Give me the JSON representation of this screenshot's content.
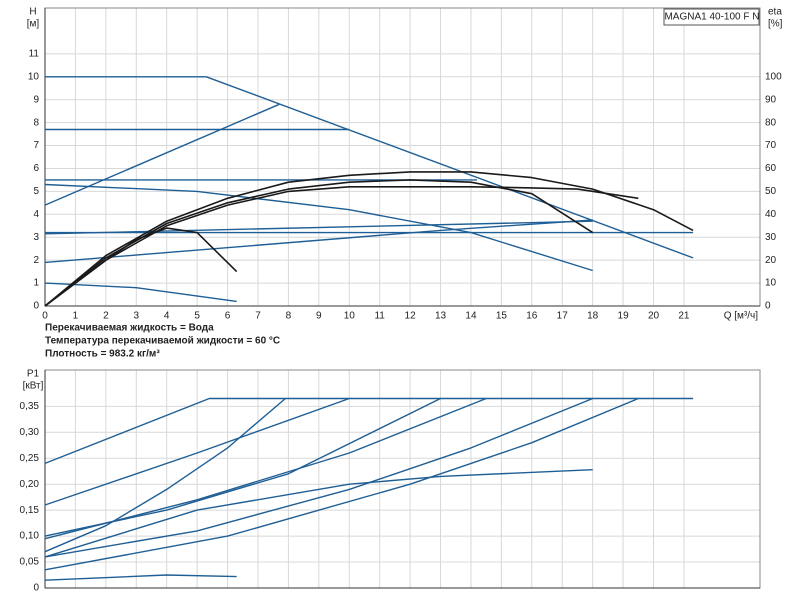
{
  "chart_data": [
    {
      "type": "line",
      "title": "MAGNA1 40-100 F N",
      "ylabel": "H",
      "yunit": "[м]",
      "y2label": "eta",
      "y2unit": "[%]",
      "xlabel": "Q [м³/ч]",
      "annotations": [
        "Перекачиваемая жидкость = Вода",
        "Температура перекачиваемой жидкости = 60 °C",
        "Плотность = 983.2 кг/м³"
      ],
      "xlim": [
        0,
        23.5
      ],
      "xticks": [
        0,
        1,
        2,
        3,
        4,
        5,
        6,
        7,
        8,
        9,
        10,
        11,
        12,
        13,
        14,
        15,
        16,
        17,
        18,
        19,
        20,
        21
      ],
      "ylim": [
        0,
        13
      ],
      "yticks": [
        0,
        1,
        2,
        3,
        4,
        5,
        6,
        7,
        8,
        9,
        10,
        11
      ],
      "y2lim": [
        0,
        130
      ],
      "y2ticks": [
        0,
        10,
        20,
        30,
        40,
        50,
        60,
        70,
        80,
        90,
        100
      ],
      "grid": true,
      "series": [
        {
          "color": "#1f5f95",
          "x": [
            0,
            5.3,
            21.3
          ],
          "values": [
            10,
            10,
            2.1
          ]
        },
        {
          "color": "#1f5f95",
          "x": [
            0,
            10
          ],
          "values": [
            7.7,
            7.7
          ]
        },
        {
          "color": "#1f5f95",
          "x": [
            0,
            14.2
          ],
          "values": [
            5.5,
            5.5
          ]
        },
        {
          "color": "#1f5f95",
          "x": [
            0,
            5,
            10,
            14,
            18
          ],
          "values": [
            5.3,
            5.0,
            4.2,
            3.2,
            1.55
          ]
        },
        {
          "color": "#1f5f95",
          "x": [
            0,
            21.3
          ],
          "values": [
            3.2,
            3.2
          ]
        },
        {
          "color": "#1f5f95",
          "x": [
            0,
            7.7
          ],
          "values": [
            4.4,
            8.8
          ]
        },
        {
          "color": "#1f5f95",
          "x": [
            0,
            18
          ],
          "values": [
            3.15,
            3.7
          ]
        },
        {
          "color": "#1f5f95",
          "x": [
            0,
            13,
            18
          ],
          "values": [
            1.9,
            3.3,
            3.75
          ]
        },
        {
          "color": "#1f5f95",
          "x": [
            0,
            3,
            6.3
          ],
          "values": [
            1.0,
            0.8,
            0.2
          ]
        },
        {
          "color": "#1a1a1a",
          "axis": "y2",
          "x": [
            0,
            2,
            4,
            6,
            8,
            10,
            12,
            14,
            16,
            18,
            20,
            21.3
          ],
          "values": [
            0,
            22,
            37,
            47,
            54,
            57,
            58.5,
            58.5,
            56,
            51,
            42,
            33
          ]
        },
        {
          "color": "#1a1a1a",
          "axis": "y2",
          "x": [
            0,
            2,
            4,
            6,
            8,
            10,
            12,
            14,
            16,
            17.5,
            19.5
          ],
          "values": [
            0,
            20,
            35,
            44,
            50,
            52,
            52,
            52,
            51.5,
            51,
            47
          ]
        },
        {
          "color": "#1a1a1a",
          "axis": "y2",
          "x": [
            0,
            2,
            4,
            6,
            8,
            10,
            12,
            14,
            16,
            18
          ],
          "values": [
            0,
            21,
            36,
            45,
            51,
            54,
            55,
            54,
            49,
            32
          ]
        },
        {
          "color": "#1a1a1a",
          "axis": "y2",
          "x": [
            0,
            1,
            2,
            3,
            4,
            5,
            6.3
          ],
          "values": [
            0,
            10,
            20,
            29,
            34,
            32,
            15
          ]
        }
      ]
    },
    {
      "type": "line",
      "ylabel": "P1",
      "yunit": "[кВт]",
      "xlim": [
        0,
        23.5
      ],
      "ylim": [
        0,
        0.42
      ],
      "yticks": [
        0,
        {
          "value": 0.05,
          "label": "0,05"
        },
        {
          "value": 0.1,
          "label": "0,10"
        },
        {
          "value": 0.15,
          "label": "0,15"
        },
        {
          "value": 0.2,
          "label": "0,20"
        },
        {
          "value": 0.25,
          "label": "0,25"
        },
        {
          "value": 0.3,
          "label": "0,30"
        },
        {
          "value": 0.35,
          "label": "0,35"
        }
      ],
      "grid": true,
      "series": [
        {
          "color": "#1f5f95",
          "x": [
            0,
            5.4,
            21.3
          ],
          "values": [
            0.24,
            0.365,
            0.365
          ]
        },
        {
          "color": "#1f5f95",
          "x": [
            0,
            5,
            10
          ],
          "values": [
            0.16,
            0.26,
            0.365
          ]
        },
        {
          "color": "#1f5f95",
          "x": [
            0,
            2,
            4,
            6,
            7.9
          ],
          "values": [
            0.07,
            0.12,
            0.19,
            0.27,
            0.365
          ]
        },
        {
          "color": "#1f5f95",
          "x": [
            0,
            4,
            8,
            13
          ],
          "values": [
            0.1,
            0.15,
            0.22,
            0.365
          ]
        },
        {
          "color": "#1f5f95",
          "x": [
            0,
            5,
            10,
            14.5
          ],
          "values": [
            0.095,
            0.17,
            0.26,
            0.365
          ]
        },
        {
          "color": "#1f5f95",
          "x": [
            0,
            5,
            10,
            14,
            18
          ],
          "values": [
            0.06,
            0.11,
            0.19,
            0.27,
            0.365
          ]
        },
        {
          "color": "#1f5f95",
          "x": [
            0,
            6,
            12,
            16,
            19.5
          ],
          "values": [
            0.035,
            0.1,
            0.2,
            0.28,
            0.365
          ]
        },
        {
          "color": "#1f5f95",
          "x": [
            0,
            5,
            10,
            13,
            18
          ],
          "values": [
            0.06,
            0.15,
            0.2,
            0.215,
            0.228
          ]
        },
        {
          "color": "#1f5f95",
          "x": [
            0,
            4,
            6.3
          ],
          "values": [
            0.015,
            0.025,
            0.022
          ]
        }
      ]
    }
  ]
}
